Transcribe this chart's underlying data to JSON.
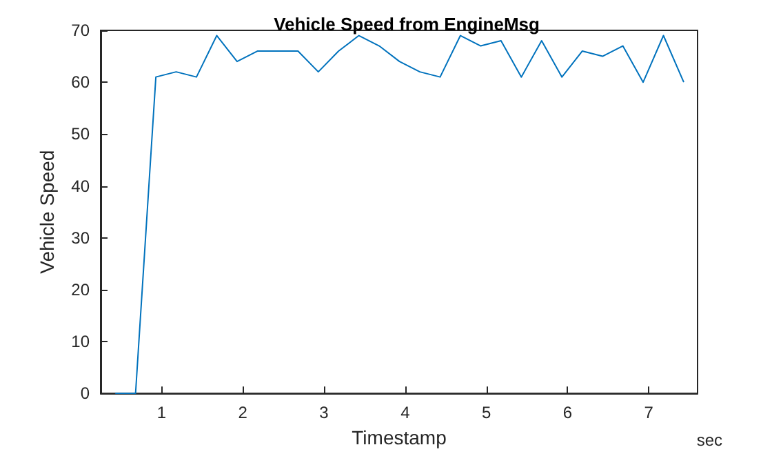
{
  "chart_data": {
    "type": "line",
    "title": "Vehicle Speed from EngineMsg",
    "xlabel": "Timestamp",
    "ylabel": "Vehicle Speed",
    "annotations": [
      "sec"
    ],
    "x": [
      0.43,
      0.68,
      0.93,
      1.18,
      1.43,
      1.68,
      1.93,
      2.18,
      2.43,
      2.68,
      2.93,
      3.18,
      3.43,
      3.68,
      3.93,
      4.18,
      4.43,
      4.68,
      4.93,
      5.18,
      5.43,
      5.68,
      5.93,
      6.18,
      6.43,
      6.68,
      6.93,
      7.18,
      7.43
    ],
    "series": [
      {
        "color": "#0072bd",
        "values": [
          0,
          0,
          61,
          62,
          61,
          69,
          64,
          66,
          66,
          66,
          62,
          66,
          69,
          67,
          64,
          62,
          61,
          69,
          67,
          68,
          61,
          68,
          61,
          66,
          65,
          67,
          60,
          69,
          60
        ]
      }
    ],
    "xlim": [
      0.25,
      7.6
    ],
    "xticks": [
      1,
      2,
      3,
      4,
      5,
      6,
      7
    ],
    "ylim": [
      0,
      70
    ],
    "yticks": [
      0,
      10,
      20,
      30,
      40,
      50,
      60,
      70
    ],
    "grid": false,
    "marker": "none",
    "line_style": "solid"
  }
}
